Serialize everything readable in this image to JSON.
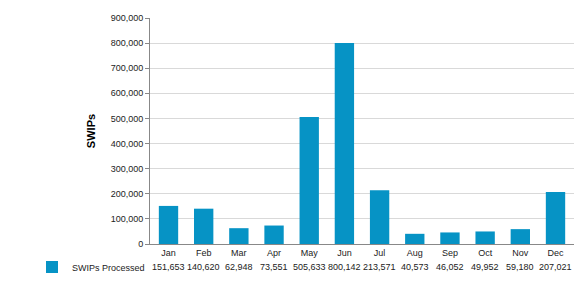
{
  "chart_data": {
    "type": "bar",
    "y_label": "SWIPs",
    "categories": [
      "Jan",
      "Feb",
      "Mar",
      "Apr",
      "May",
      "Jun",
      "Jul",
      "Aug",
      "Sep",
      "Oct",
      "Nov",
      "Dec"
    ],
    "series": [
      {
        "name": "SWIPs Processed",
        "color": "#0693c5",
        "values": [
          151653,
          140620,
          62948,
          73551,
          505633,
          800142,
          213571,
          40573,
          46052,
          49952,
          59180,
          207021
        ],
        "value_labels": [
          "151,653",
          "140,620",
          "62,948",
          "73,551",
          "505,633",
          "800,142",
          "213,571",
          "40,573",
          "46,052",
          "49,952",
          "59,180",
          "207,021"
        ]
      }
    ],
    "data_labels": true,
    "ylim": [
      0,
      900000
    ],
    "yticks": [
      0,
      {
        "value": 100000,
        "label": "100,000"
      },
      {
        "value": 200000,
        "label": "200,000"
      },
      {
        "value": 300000,
        "label": "300,000"
      },
      {
        "value": 400000,
        "label": "400,000"
      },
      {
        "value": 500000,
        "label": "500,000"
      },
      {
        "value": 600000,
        "label": "600,000"
      },
      {
        "value": 700000,
        "label": "700,000"
      },
      {
        "value": 800000,
        "label": "800,000"
      },
      {
        "value": 900000,
        "label": "900,000"
      }
    ],
    "grid": true
  }
}
